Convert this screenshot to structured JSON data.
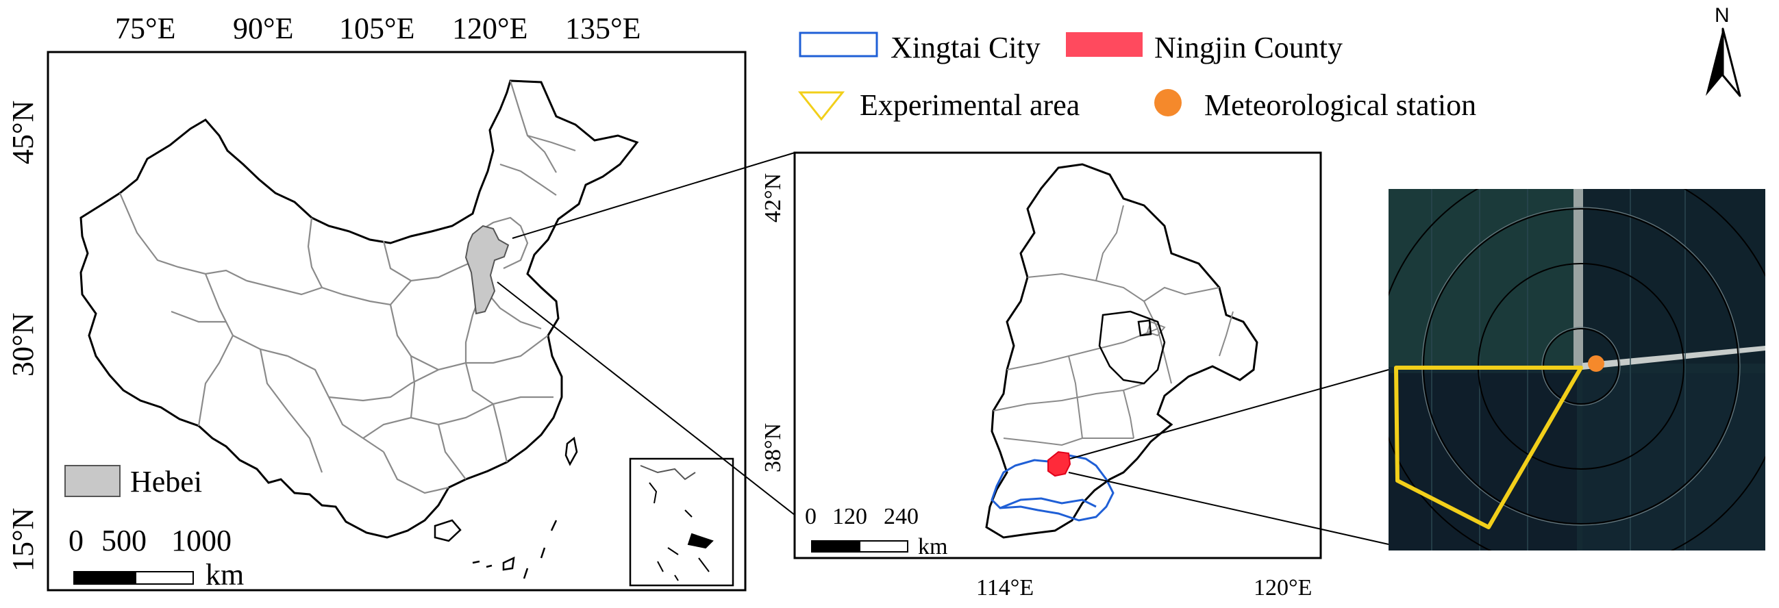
{
  "china_map": {
    "lon_labels": [
      "75°E",
      "90°E",
      "105°E",
      "120°E",
      "135°E"
    ],
    "lat_labels": [
      "45°N",
      "30°N",
      "15°N"
    ],
    "highlight_label": "Hebei",
    "scale": {
      "ticks": [
        "0",
        "500",
        "1000"
      ],
      "unit": "km"
    }
  },
  "hebei_map": {
    "lon_labels": [
      "114°E",
      "120°E"
    ],
    "lat_labels": [
      "42°N",
      "38°N"
    ],
    "scale": {
      "ticks": [
        "0",
        "120",
        "240"
      ],
      "unit": "km"
    }
  },
  "legend": {
    "items": [
      {
        "label": "Xingtai City",
        "symbol": "blue-outline-rect"
      },
      {
        "label": "Ningjin County",
        "symbol": "red-filled-rect"
      },
      {
        "label": "Experimental area",
        "symbol": "yellow-outline-triangle"
      },
      {
        "label": "Meteorological station",
        "symbol": "orange-dot"
      }
    ]
  },
  "north_arrow": {
    "label": "N"
  },
  "colors": {
    "xingtai": "#1f5fd6",
    "ningjin": "#ff2a3a",
    "experimental": "#f2cf1a",
    "station": "#f5892b",
    "hebei_fill": "#c8c8c8",
    "province_lines": "#8a8a8a"
  }
}
